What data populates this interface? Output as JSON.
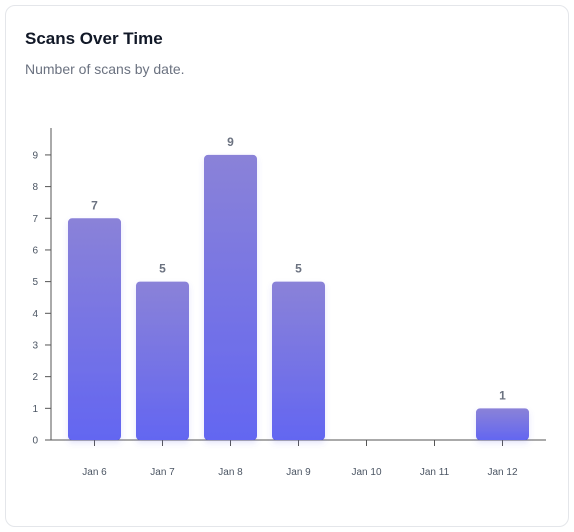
{
  "card": {
    "title": "Scans Over Time",
    "subtitle": "Number of scans by date."
  },
  "colors": {
    "bar_top": "#8a82d8",
    "bar_bottom": "#6366f1",
    "axis": "#555555",
    "value_label": "#6b7280"
  },
  "chart_data": {
    "type": "bar",
    "categories": [
      "Jan 6",
      "Jan 7",
      "Jan 8",
      "Jan 9",
      "Jan 10",
      "Jan 11",
      "Jan 12"
    ],
    "values": [
      7,
      5,
      9,
      5,
      0,
      0,
      1
    ],
    "value_labels": [
      "7",
      "5",
      "9",
      "5",
      "",
      "",
      "1"
    ],
    "yticks": [
      0,
      1,
      2,
      3,
      4,
      5,
      6,
      7,
      8,
      9
    ],
    "ylim": [
      0,
      9.85
    ],
    "grid": false,
    "xlabel": "",
    "ylabel": ""
  }
}
